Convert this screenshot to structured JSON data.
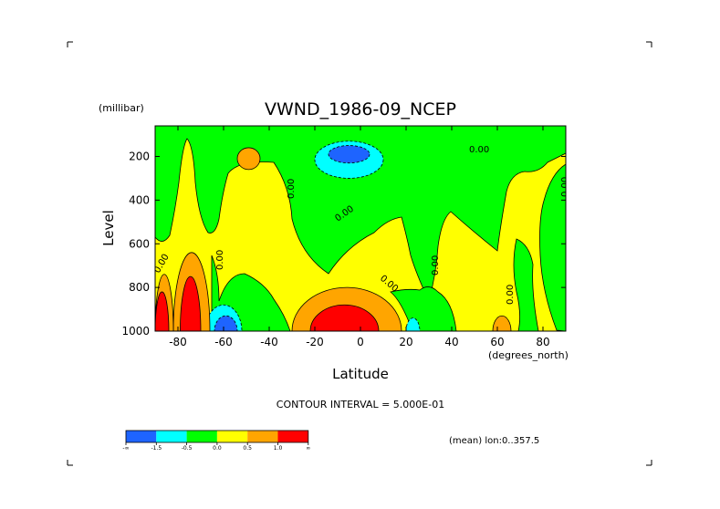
{
  "chart_data": {
    "type": "heatmap",
    "title": "VWND_1986-09_NCEP",
    "xlabel": "Latitude",
    "x_units": "(degrees_north)",
    "ylabel": "Level",
    "y_units": "(millibar)",
    "xlim": [
      -90,
      90
    ],
    "ylim": [
      1000,
      60
    ],
    "y_reversed": true,
    "x_ticks": [
      -80,
      -60,
      -40,
      -20,
      0,
      20,
      40,
      60,
      80
    ],
    "x_tick_labels": [
      "-80",
      "-60",
      "-40",
      "-20",
      "0",
      "20",
      "40",
      "60",
      "80"
    ],
    "y_ticks": [
      200,
      400,
      600,
      800,
      1000
    ],
    "y_tick_labels": [
      "200",
      "400",
      "600",
      "800",
      "1000"
    ],
    "contour_interval_text": "CONTOUR INTERVAL = 5.000E-01",
    "region_text": "(mean) lon:0..357.5",
    "contour_label": "0.00",
    "colorbar": {
      "colors": [
        "#1e64ff",
        "#00ffff",
        "#00ff00",
        "#ffff00",
        "#ffa500",
        "#ff0000"
      ],
      "colors_extra": [
        "#33d9ff",
        "#1ee01e"
      ],
      "labels": [
        "-∞",
        "-1.5",
        "-0.5",
        "0.0",
        "0.5",
        "1.0",
        "∞"
      ]
    },
    "regions": [
      {
        "level": "negative",
        "color": "#00ffff",
        "lat": [
          -20,
          10
        ],
        "pressure": [
          130,
          300
        ]
      },
      {
        "level": "strong-negative",
        "color": "#1e64ff",
        "lat": [
          -14,
          4
        ],
        "pressure": [
          150,
          230
        ]
      },
      {
        "level": "positive",
        "color": "#ffa500",
        "lat": [
          -30,
          18
        ],
        "pressure": [
          800,
          1000
        ]
      },
      {
        "level": "strong-positive",
        "color": "#ff0000",
        "lat": [
          -22,
          8
        ],
        "pressure": [
          880,
          1000
        ]
      },
      {
        "level": "negative",
        "color": "#00ffff",
        "lat": [
          -68,
          -52
        ],
        "pressure": [
          880,
          1000
        ]
      },
      {
        "level": "strong-negative",
        "color": "#1e64ff",
        "lat": [
          -64,
          -54
        ],
        "pressure": [
          930,
          1000
        ]
      },
      {
        "level": "positive",
        "color": "#ffa500",
        "lat": [
          -82,
          -66
        ],
        "pressure": [
          640,
          1000
        ]
      },
      {
        "level": "strong-positive",
        "color": "#ff0000",
        "lat": [
          -79,
          -70
        ],
        "pressure": [
          750,
          1000
        ]
      },
      {
        "level": "positive",
        "color": "#ffa500",
        "lat": [
          -90,
          -82
        ],
        "pressure": [
          740,
          1000
        ]
      },
      {
        "level": "strong-positive",
        "color": "#ff0000",
        "lat": [
          -90,
          -84
        ],
        "pressure": [
          820,
          1000
        ]
      },
      {
        "level": "positive",
        "color": "#ffa500",
        "lat": [
          -54,
          -44
        ],
        "pressure": [
          160,
          260
        ]
      },
      {
        "level": "positive",
        "color": "#ffa500",
        "lat": [
          58,
          66
        ],
        "pressure": [
          930,
          1000
        ]
      },
      {
        "level": "negative",
        "color": "#00ffff",
        "lat": [
          20,
          26
        ],
        "pressure": [
          940,
          1000
        ]
      }
    ]
  }
}
